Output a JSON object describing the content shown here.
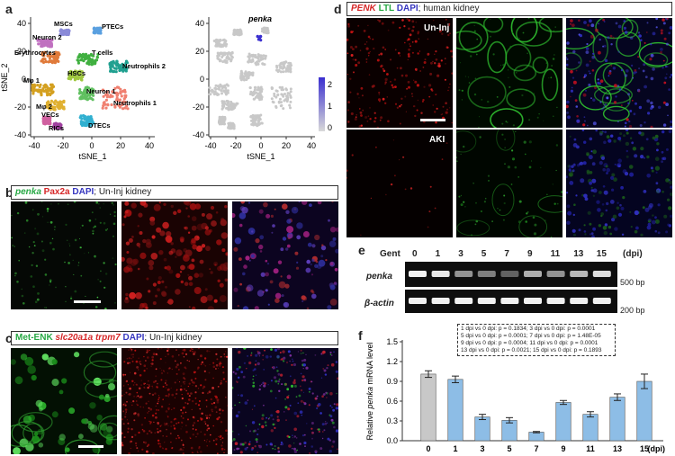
{
  "panels": {
    "a": "a",
    "b": "b",
    "c": "c",
    "d": "d",
    "e": "e",
    "f": "f"
  },
  "panel_a": {
    "xlabel": "tSNE_1",
    "ylabel": "tSNE_2",
    "x_ticks": [
      "-40",
      "-20",
      "0",
      "20",
      "40"
    ],
    "y_ticks": [
      "40",
      "20",
      "0",
      "-20",
      "-40"
    ],
    "clusters": [
      {
        "name": "MSCs",
        "color": "#8a8ad8"
      },
      {
        "name": "PTECs",
        "color": "#5aa0e0"
      },
      {
        "name": "Neuron 2",
        "color": "#c070c0"
      },
      {
        "name": "Erythrocytes",
        "color": "#e07a3a"
      },
      {
        "name": "T cells",
        "color": "#40b040"
      },
      {
        "name": "HSCs",
        "color": "#a0c840"
      },
      {
        "name": "Neutrophils 2",
        "color": "#20a090"
      },
      {
        "name": "Mφ 1",
        "color": "#d4a020"
      },
      {
        "name": "Mφ 2",
        "color": "#e0b030"
      },
      {
        "name": "Neuron 1",
        "color": "#60c060"
      },
      {
        "name": "Neutrophils 1",
        "color": "#f08070"
      },
      {
        "name": "VECs",
        "color": "#d060a0"
      },
      {
        "name": "RICs",
        "color": "#a040a0"
      },
      {
        "name": "DTECs",
        "color": "#30b0d0"
      }
    ],
    "feature_title": "penka",
    "colorbar_ticks": [
      "2",
      "1",
      "0"
    ]
  },
  "panel_b": {
    "caption_parts": [
      {
        "text": "penka",
        "color": "green",
        "italic": true
      },
      {
        "text": " Pax2a",
        "color": "red",
        "italic": false
      },
      {
        "text": " DAPI",
        "color": "blue",
        "italic": false
      },
      {
        "text": "; Un-Inj kidney",
        "color": "black",
        "italic": false
      }
    ]
  },
  "panel_c": {
    "caption_parts": [
      {
        "text": "Met-ENK",
        "color": "green",
        "italic": false
      },
      {
        "text": " slc20a1a trpm7",
        "color": "red",
        "italic": true
      },
      {
        "text": " DAPI",
        "color": "blue",
        "italic": false
      },
      {
        "text": "; Un-Inj kidney",
        "color": "black",
        "italic": false
      }
    ]
  },
  "panel_d": {
    "caption_parts": [
      {
        "text": "PENK",
        "color": "red",
        "italic": true
      },
      {
        "text": " LTL",
        "color": "green",
        "italic": false
      },
      {
        "text": " DAPI",
        "color": "blue",
        "italic": false
      },
      {
        "text": "; human kidney",
        "color": "black",
        "italic": false
      }
    ],
    "row1_label": "Un-Inj",
    "row2_label": "AKI"
  },
  "panel_e": {
    "header_label": "Gent",
    "lanes": [
      "0",
      "1",
      "3",
      "5",
      "7",
      "9",
      "11",
      "13",
      "15"
    ],
    "unit": "(dpi)",
    "rows": [
      {
        "label": "penka",
        "marker": "500 bp",
        "intensities": [
          0.95,
          0.9,
          0.45,
          0.35,
          0.2,
          0.6,
          0.45,
          0.65,
          0.85
        ]
      },
      {
        "label": "β-actin",
        "marker": "200 bp",
        "intensities": [
          0.95,
          0.95,
          0.95,
          0.95,
          0.95,
          0.95,
          0.95,
          0.95,
          0.95
        ]
      }
    ]
  },
  "stats_lines": [
    "1 dpi vs 0 dpi: p = 0.1834; 3 dpi vs 0 dpi: p = 0.0001",
    "5 dpi vs 0 dpi: p = 0.0001; 7 dpi vs 0 dpi: p = 1.48E-05",
    "9 dpi vs 0 dpi: p = 0.0004; 11 dpi vs 0 dpi: p = 0.0001",
    "13 dpi vs 0 dpi: p = 0.0021; 15 dpi vs 0 dpi: p = 0.1893"
  ],
  "chart_data": {
    "type": "bar",
    "categories": [
      "0",
      "1",
      "3",
      "5",
      "7",
      "9",
      "11",
      "13",
      "15"
    ],
    "values": [
      1.01,
      0.93,
      0.36,
      0.31,
      0.13,
      0.58,
      0.4,
      0.66,
      0.9
    ],
    "errors": [
      0.05,
      0.05,
      0.04,
      0.04,
      0.01,
      0.03,
      0.04,
      0.05,
      0.11
    ],
    "bar_colors": [
      "#c8c8c8",
      "#8dbde6",
      "#8dbde6",
      "#8dbde6",
      "#8dbde6",
      "#8dbde6",
      "#8dbde6",
      "#8dbde6",
      "#8dbde6"
    ],
    "ylabel_prefix": "Relative ",
    "ylabel_italic": "penka",
    "ylabel_suffix": " mRNA level",
    "xunit": "(dpi)",
    "ylim": [
      0,
      1.5
    ],
    "yticks": [
      0,
      0.3,
      0.6,
      0.9,
      1.2,
      1.5
    ],
    "ytick_labels": [
      "0.0",
      "0.3",
      "0.6",
      "0.9",
      "1.2",
      "1.5"
    ]
  }
}
